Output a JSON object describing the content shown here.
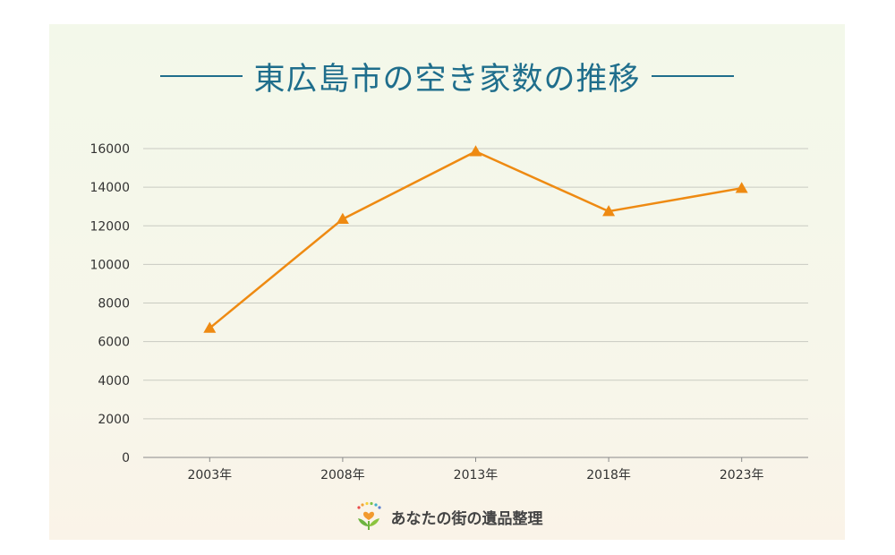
{
  "chart_data": {
    "type": "line",
    "title": "東広島市の空き家数の推移",
    "categories": [
      "2003年",
      "2008年",
      "2013年",
      "2018年",
      "2023年"
    ],
    "series": [
      {
        "values": [
          6700,
          12350,
          15850,
          12750,
          13950
        ]
      }
    ],
    "yticks": [
      "0",
      "2000",
      "4000",
      "6000",
      "8000",
      "10000",
      "12000",
      "14000",
      "16000"
    ],
    "ylim": [
      0,
      16000
    ],
    "grid": true,
    "marker": "triangle",
    "colors": {
      "line": "#ee8a12",
      "grid": "#c9cbc2",
      "title": "#1f6e8c"
    }
  },
  "footer": {
    "logo_icon": "heart-sprout-icon",
    "brand": "あなたの街の遺品整理"
  }
}
